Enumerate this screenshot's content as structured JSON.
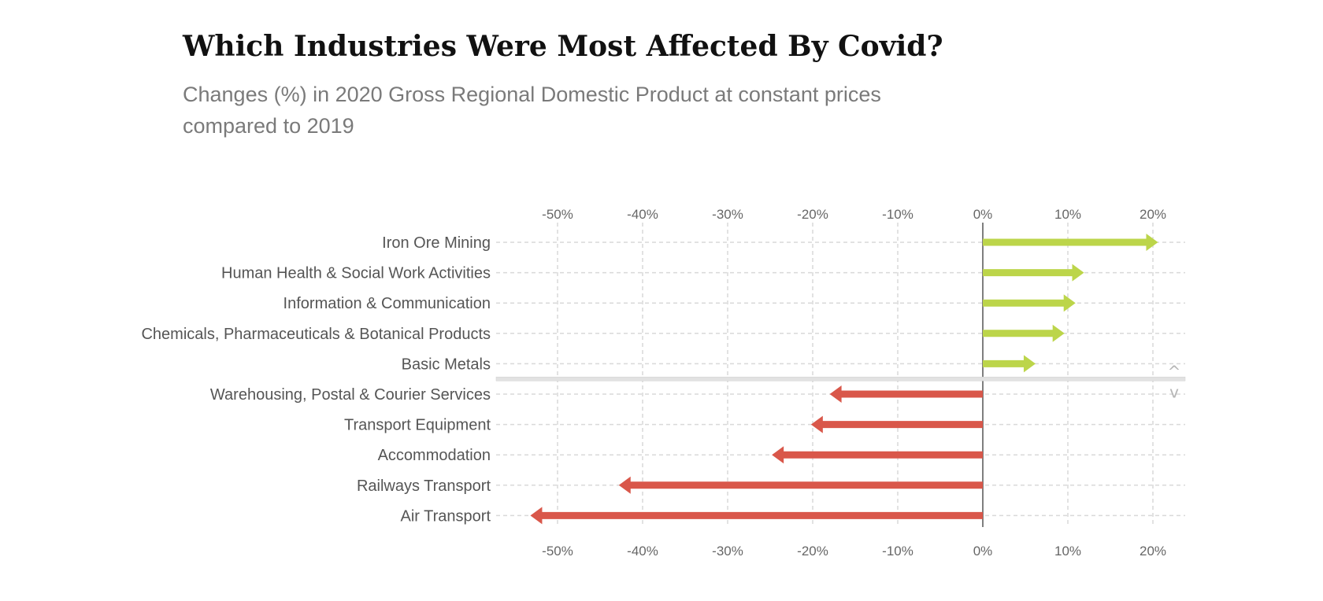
{
  "title": "Which Industries Were Most Affected By Covid?",
  "subtitle": "Changes (%) in 2020 Gross Regional Domestic Product at constant prices compared to 2019",
  "scroll_controls": {
    "up": "^",
    "down": "v"
  },
  "chart_data": {
    "type": "bar",
    "style": "arrow",
    "categories": [
      "Iron Ore Mining",
      "Human Health & Social Work Activities",
      "Information & Communication",
      "Chemicals, Pharmaceuticals & Botanical Products",
      "Basic Metals",
      "Warehousing, Postal & Courier Services",
      "Transport Equipment",
      "Accommodation",
      "Railways Transport",
      "Air Transport"
    ],
    "values": [
      20.6,
      11.9,
      10.9,
      9.6,
      6.2,
      -18.0,
      -20.2,
      -24.8,
      -42.8,
      -53.2
    ],
    "xlim": [
      -56,
      24
    ],
    "xticks": [
      -50,
      -40,
      -30,
      -20,
      -10,
      0,
      10,
      20
    ],
    "tick_labels": [
      "-50%",
      "-40%",
      "-30%",
      "-20%",
      "-10%",
      "0%",
      "10%",
      "20%"
    ],
    "ticks_position": "top and bottom",
    "grid": true,
    "colors": {
      "positive": "#bcd54a",
      "negative": "#d9574a",
      "grid": "#d9d9d9",
      "zero_line": "#555555",
      "divider": "#e2e2e2"
    }
  }
}
